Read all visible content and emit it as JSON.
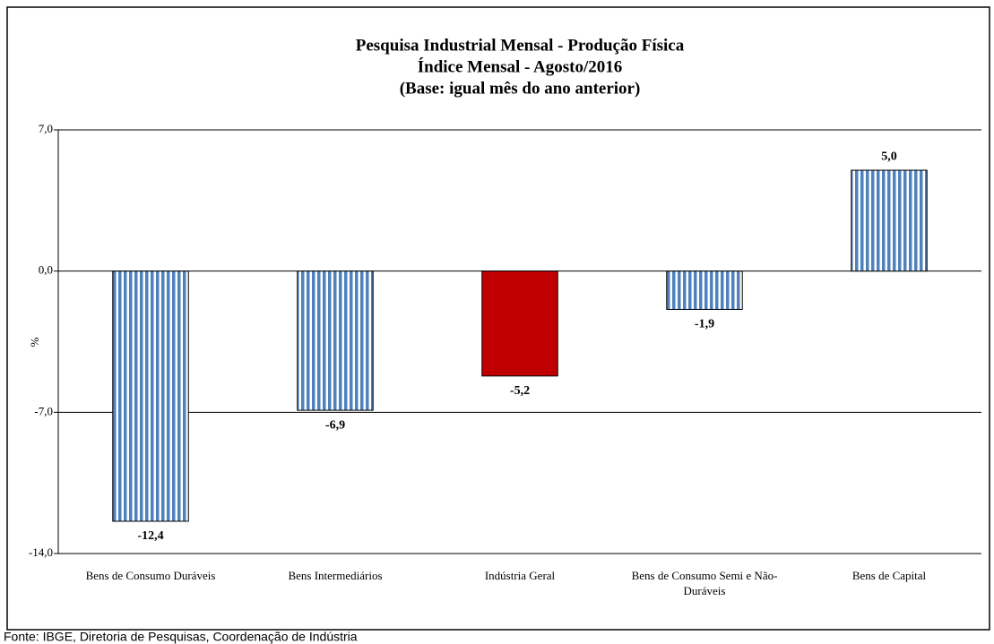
{
  "chart_data": {
    "type": "bar",
    "title": [
      "Pesquisa Industrial Mensal - Produção Física",
      "Índice Mensal - Agosto/2016",
      "(Base: igual mês do ano anterior)"
    ],
    "y_label": "%",
    "categories": [
      "Bens de Consumo Duráveis",
      "Bens Intermediários",
      "Indústria Geral",
      "Bens de Consumo Semi e Não-Duráveis",
      "Bens de Capital"
    ],
    "values": [
      -12.4,
      -6.9,
      -5.2,
      -1.9,
      5.0
    ],
    "value_labels": [
      "-12,4",
      "-6,9",
      "-5,2",
      "-1,9",
      "5,0"
    ],
    "colors": [
      "#4f81bd",
      "#4f81bd",
      "#c00000",
      "#4f81bd",
      "#4f81bd"
    ],
    "patterns": [
      "vertical-stripes",
      "vertical-stripes",
      "solid",
      "vertical-stripes",
      "vertical-stripes"
    ],
    "ylim": [
      -14,
      7
    ],
    "yticks": [
      {
        "value": -14,
        "label": "-14,0"
      },
      {
        "value": -7,
        "label": "-7,0"
      },
      {
        "value": 0,
        "label": "0,0"
      },
      {
        "value": 7,
        "label": "7,0"
      }
    ],
    "grid": true,
    "source": "Fonte: IBGE, Diretoria de Pesquisas, Coordenação de Indústria"
  }
}
